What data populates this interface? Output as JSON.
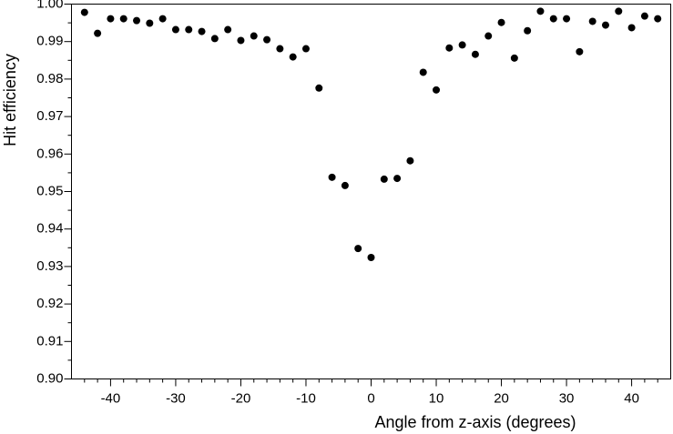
{
  "chart_data": {
    "type": "scatter",
    "xlabel": "Angle from z-axis (degrees)",
    "ylabel": "Hit efficiency",
    "x": [
      -44,
      -42,
      -40,
      -38,
      -36,
      -34,
      -32,
      -30,
      -28,
      -26,
      -24,
      -22,
      -20,
      -18,
      -16,
      -14,
      -12,
      -10,
      -8,
      -6,
      -4,
      -2,
      0,
      2,
      4,
      6,
      8,
      10,
      12,
      14,
      16,
      18,
      20,
      22,
      24,
      26,
      28,
      30,
      32,
      34,
      36,
      38,
      40,
      42,
      44
    ],
    "values": [
      0.9978,
      0.9922,
      0.9961,
      0.9961,
      0.9956,
      0.9949,
      0.9961,
      0.9932,
      0.9932,
      0.9927,
      0.9908,
      0.9932,
      0.9903,
      0.9915,
      0.9905,
      0.9881,
      0.9859,
      0.9881,
      0.9776,
      0.9538,
      0.9516,
      0.9348,
      0.9324,
      0.9533,
      0.9535,
      0.9582,
      0.9818,
      0.9771,
      0.9883,
      0.9891,
      0.9866,
      0.9915,
      0.9951,
      0.9856,
      0.9929,
      0.9981,
      0.9961,
      0.9961,
      0.9873,
      0.9954,
      0.9944,
      0.9981,
      0.9937,
      0.9968,
      0.9961
    ],
    "color": "#000000",
    "xlim": [
      -46,
      46
    ],
    "ylim": [
      0.9,
      1.0
    ],
    "xticks": [
      -40,
      -30,
      -20,
      -10,
      0,
      10,
      20,
      30,
      40
    ],
    "xminorticks": [
      -44,
      -42,
      -38,
      -36,
      -34,
      -32,
      -28,
      -26,
      -24,
      -22,
      -18,
      -16,
      -14,
      -12,
      -8,
      -6,
      -4,
      -2,
      2,
      4,
      6,
      8,
      12,
      14,
      16,
      18,
      22,
      24,
      26,
      28,
      32,
      34,
      36,
      38,
      42,
      44
    ],
    "yticks": [
      {
        "value": 0.9,
        "label": "0.90"
      },
      0.91,
      0.92,
      0.93,
      0.94,
      0.95,
      0.96,
      0.97,
      0.98,
      0.99,
      {
        "value": 1.0,
        "label": "1.00"
      }
    ],
    "yminorticks": [
      0.905,
      0.915,
      0.925,
      0.935,
      0.945,
      0.955,
      0.965,
      0.975,
      0.985,
      0.995
    ]
  }
}
